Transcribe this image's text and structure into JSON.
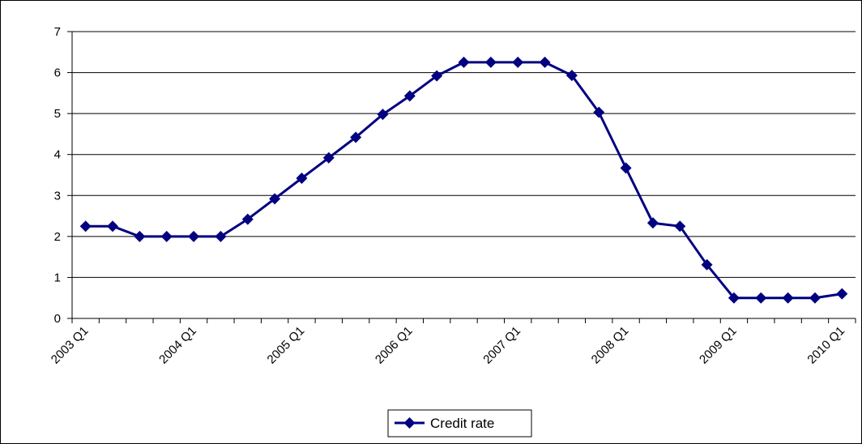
{
  "chart_data": {
    "type": "line",
    "title": "",
    "xlabel": "",
    "ylabel": "",
    "x": [
      "2003 Q1",
      "2003 Q2",
      "2003 Q3",
      "2003 Q4",
      "2004 Q1",
      "2004 Q2",
      "2004 Q3",
      "2004 Q4",
      "2005 Q1",
      "2005 Q2",
      "2005 Q3",
      "2005 Q4",
      "2006 Q1",
      "2006 Q2",
      "2006 Q3",
      "2006 Q4",
      "2007 Q1",
      "2007 Q2",
      "2007 Q3",
      "2007 Q4",
      "2008 Q1",
      "2008 Q2",
      "2008 Q3",
      "2008 Q4",
      "2009 Q1",
      "2009 Q2",
      "2009 Q3",
      "2009 Q4",
      "2010 Q1"
    ],
    "x_tick_labels": [
      "2003 Q1",
      "2004 Q1",
      "2005 Q1",
      "2006 Q1",
      "2007 Q1",
      "2008 Q1",
      "2009 Q1",
      "2010 Q1"
    ],
    "series": [
      {
        "name": "Credit rate",
        "color": "#000080",
        "marker": "diamond",
        "values": [
          2.25,
          2.25,
          2.0,
          2.0,
          2.0,
          2.0,
          2.42,
          2.92,
          3.42,
          3.92,
          4.42,
          4.98,
          5.43,
          5.92,
          6.25,
          6.25,
          6.25,
          6.25,
          5.93,
          5.03,
          3.67,
          2.33,
          2.25,
          1.31,
          0.5,
          0.5,
          0.5,
          0.5,
          0.6
        ]
      }
    ],
    "ylim": [
      0,
      7
    ],
    "y_ticks": [
      0,
      1,
      2,
      3,
      4,
      5,
      6,
      7
    ],
    "grid": "horizontal",
    "legend_position": "bottom"
  }
}
